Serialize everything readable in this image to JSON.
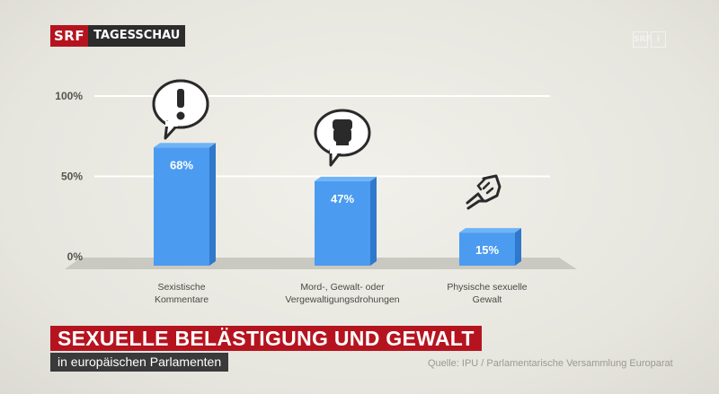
{
  "header": {
    "brand": "SRF",
    "show": "TAGESSCHAU",
    "watermark_left": "SRF",
    "watermark_right": "i"
  },
  "title": {
    "main": "SEXUELLE BELÄSTIGUNG UND GEWALT",
    "sub": "in europäischen Parlamenten"
  },
  "source": "Quelle: IPU / Parlamentarische Versammlung Europarat",
  "colors": {
    "bar": "#4b9bf0",
    "bar_side": "#2f78cc",
    "accent": "#b5141f",
    "axis_text": "#55554f"
  },
  "chart_data": {
    "type": "bar",
    "categories": [
      [
        "Sexistische",
        "Kommentare"
      ],
      [
        "Mord-, Gewalt-  oder",
        "Vergewaltigungsdrohungen"
      ],
      [
        "Physische sexuelle",
        "Gewalt"
      ]
    ],
    "values": [
      68,
      47,
      15
    ],
    "value_labels": [
      "68%",
      "47%",
      "15%"
    ],
    "ylim": [
      0,
      100
    ],
    "yticks": [
      {
        "value": 100,
        "label": "100%"
      },
      {
        "value": 50,
        "label": "50%"
      },
      {
        "value": 0,
        "label": "0%"
      }
    ],
    "grid": true,
    "icons": [
      "exclamation-speech-bubble-icon",
      "fist-speech-bubble-icon",
      "fist-punch-icon"
    ]
  }
}
